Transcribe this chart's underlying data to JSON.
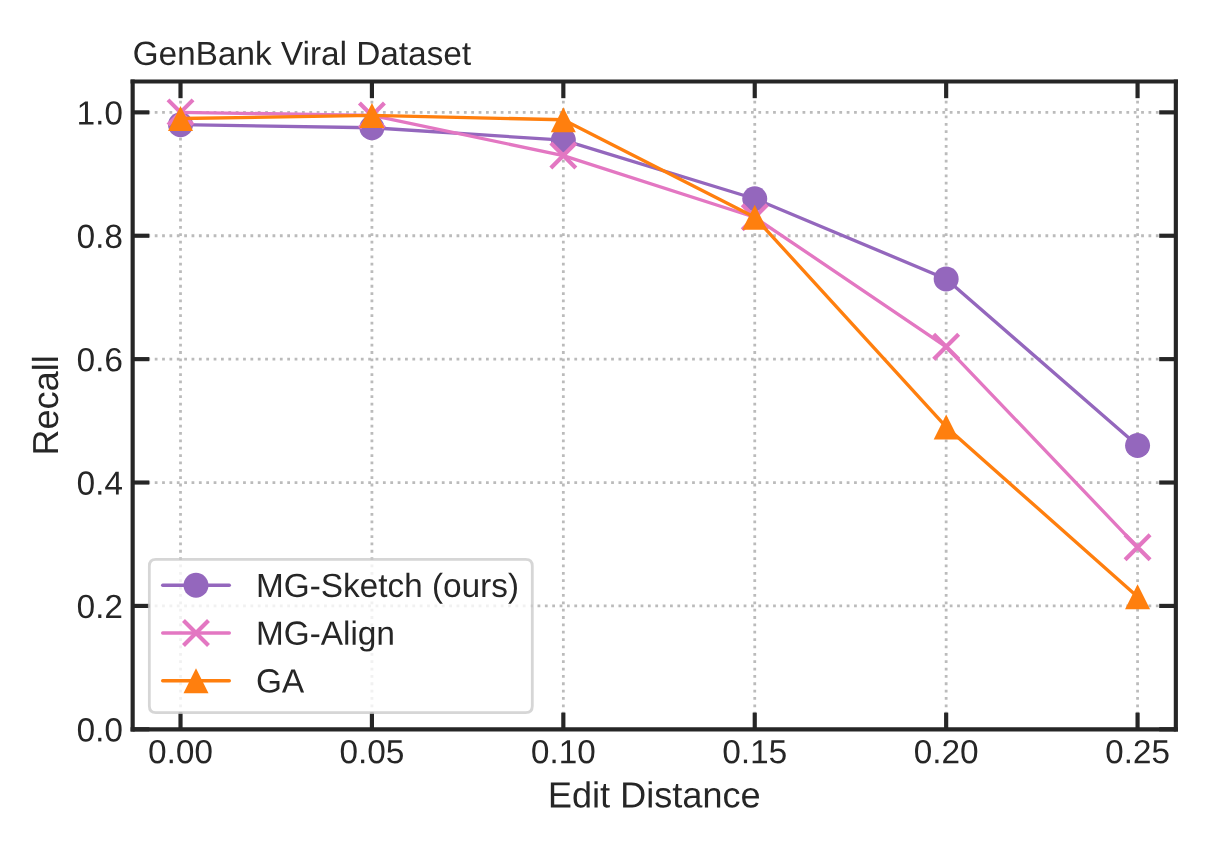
{
  "chart_data": {
    "type": "line",
    "title": "GenBank Viral Dataset",
    "xlabel": "Edit Distance",
    "ylabel": "Recall",
    "x": [
      0.0,
      0.05,
      0.1,
      0.15,
      0.2,
      0.25
    ],
    "series": [
      {
        "name": "MG-Sketch (ours)",
        "color": "#9467bd",
        "marker": "circle",
        "values": [
          0.98,
          0.975,
          0.955,
          0.86,
          0.73,
          0.46
        ]
      },
      {
        "name": "MG-Align",
        "color": "#e377c2",
        "marker": "cross",
        "values": [
          1.0,
          0.995,
          0.93,
          0.83,
          0.62,
          0.295
        ]
      },
      {
        "name": "GA",
        "color": "#ff7f0e",
        "marker": "triangle",
        "values": [
          0.99,
          0.995,
          0.988,
          0.83,
          0.49,
          0.215
        ]
      }
    ],
    "xlim": [
      -0.0125,
      0.26
    ],
    "ylim": [
      0,
      1.05
    ],
    "xticks": [
      {
        "value": 0.0,
        "label": "0.00"
      },
      {
        "value": 0.05,
        "label": "0.05"
      },
      {
        "value": 0.1,
        "label": "0.10"
      },
      {
        "value": 0.15,
        "label": "0.15"
      },
      {
        "value": 0.2,
        "label": "0.20"
      },
      {
        "value": 0.25,
        "label": "0.25"
      }
    ],
    "yticks": [
      {
        "value": 0,
        "label": "0.0"
      },
      {
        "value": 0.2,
        "label": "0.2"
      },
      {
        "value": 0.4,
        "label": "0.4"
      },
      {
        "value": 0.6,
        "label": "0.6"
      },
      {
        "value": 0.8,
        "label": "0.8"
      },
      {
        "value": 1.0,
        "label": "1.0"
      }
    ],
    "grid": true,
    "legend": "bottom left",
    "line_style": "solid"
  }
}
